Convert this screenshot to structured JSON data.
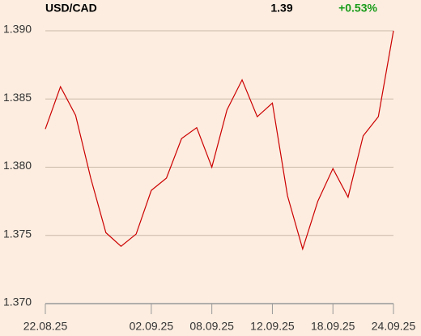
{
  "chart_data": {
    "type": "line",
    "title": "USD/CAD",
    "price": "1.39",
    "change": "+0.53%",
    "change_color": "#1a9c1a",
    "categories": [
      "22.08.25",
      null,
      null,
      null,
      null,
      null,
      null,
      "02.09.25",
      null,
      null,
      null,
      "08.09.25",
      null,
      null,
      null,
      "12.09.25",
      null,
      null,
      null,
      "18.09.25",
      null,
      null,
      null,
      "24.09.25"
    ],
    "series": [
      {
        "name": "USD/CAD",
        "color": "#cc0000",
        "values": [
          1.3828,
          1.3859,
          1.3838,
          1.3792,
          1.3752,
          1.3742,
          1.3751,
          1.3783,
          1.3792,
          1.3821,
          1.3829,
          1.38,
          1.3842,
          1.3864,
          1.3837,
          1.3847,
          1.3779,
          1.374,
          1.3775,
          1.3799,
          1.3778,
          1.3823,
          1.3837,
          1.39
        ]
      }
    ],
    "ylim": [
      1.37,
      1.39
    ],
    "yticks": [
      {
        "value": 1.37,
        "label": "1.370"
      },
      1.375,
      {
        "value": 1.38,
        "label": "1.380"
      },
      1.385,
      {
        "value": 1.39,
        "label": "1.390"
      }
    ],
    "grid": true
  }
}
